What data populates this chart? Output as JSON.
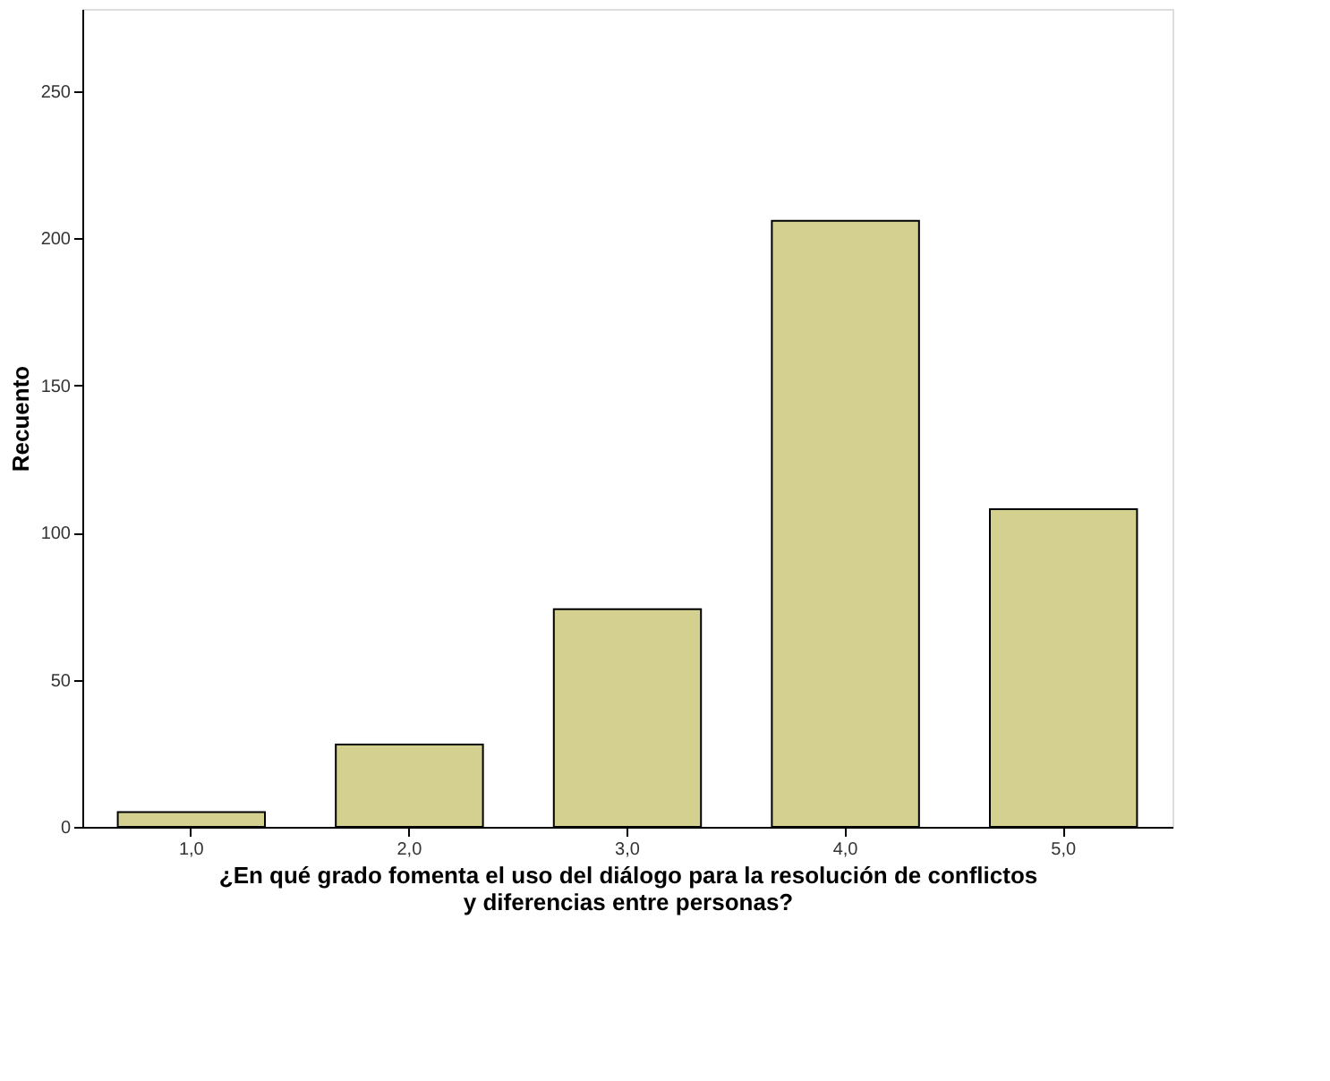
{
  "chart_data": {
    "type": "bar",
    "xlabel": "¿En qué grado fomenta el uso del diálogo para la resolución de conflictos  y diferencias entre personas?",
    "ylabel": "Recuento",
    "categories": [
      "1,0",
      "2,0",
      "3,0",
      "4,0",
      "5,0"
    ],
    "values": [
      5,
      28,
      74,
      206,
      108
    ],
    "color": "#d4d08f",
    "ylim": [
      0,
      278
    ],
    "yticks": [
      0,
      50,
      100,
      150,
      200,
      250
    ],
    "grid": false
  }
}
